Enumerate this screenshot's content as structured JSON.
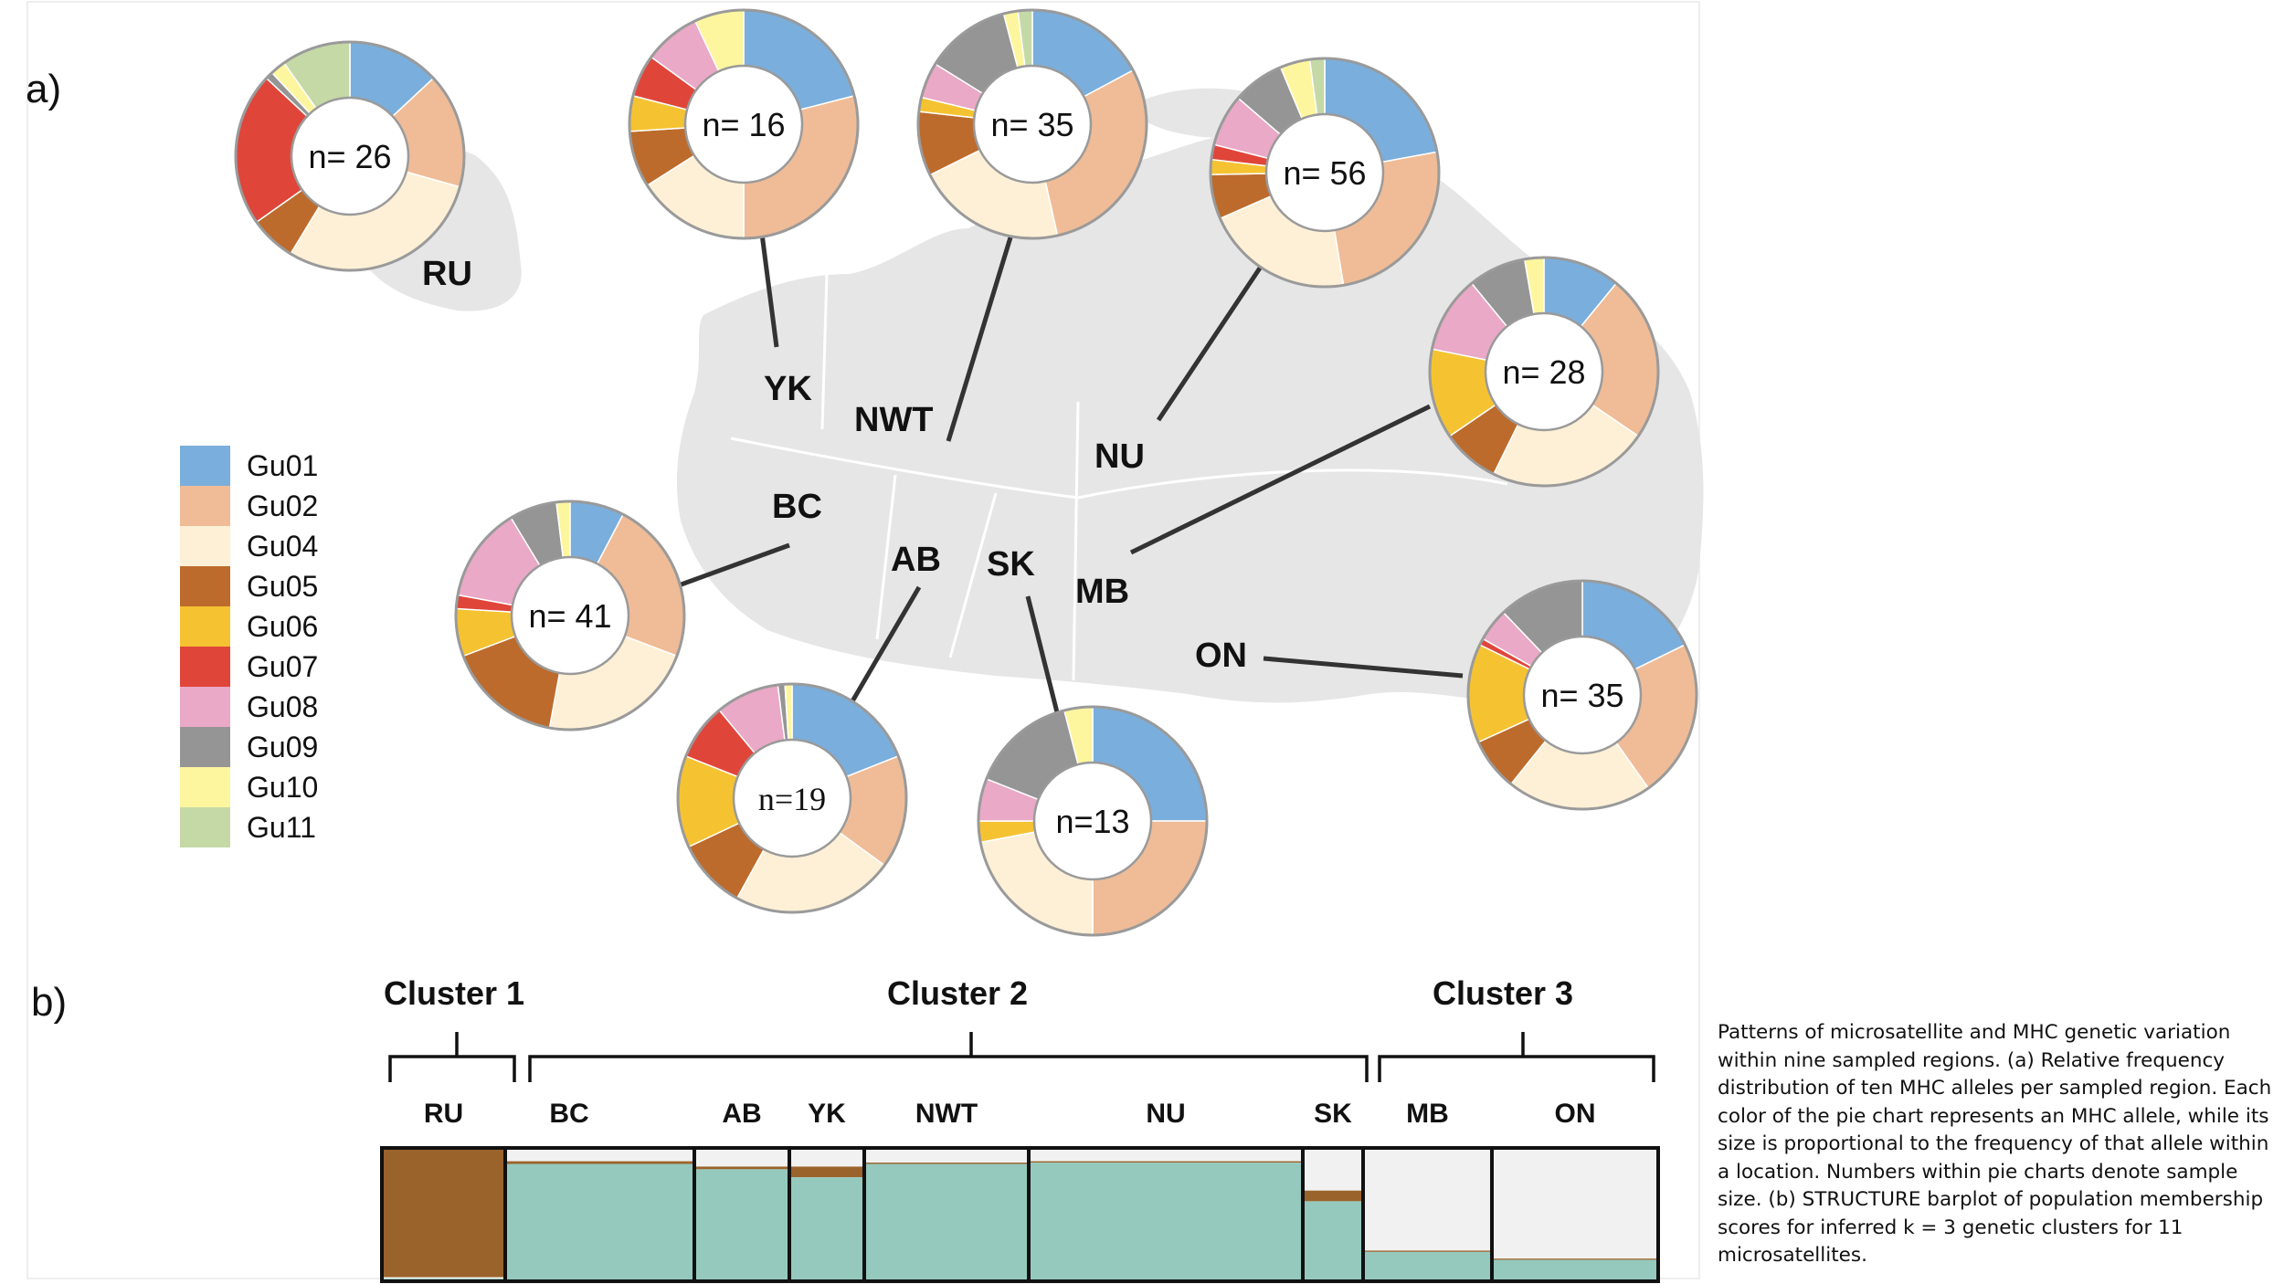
{
  "panel_labels": {
    "a": "a)",
    "b": "b)"
  },
  "colors": {
    "Gu01": "#7aaedc",
    "Gu02": "#efbc97",
    "Gu04": "#fdf0d6",
    "Gu05": "#bd6b2c",
    "Gu06": "#f5c332",
    "Gu07": "#e0453a",
    "Gu08": "#eaa9c6",
    "Gu09": "#959595",
    "Gu10": "#fdf69e",
    "Gu11": "#c5d9a7",
    "map": "#e6e6e6",
    "cluster1": "#9b632c",
    "cluster2": "#95c9bd",
    "cluster3": "#f1f1f1"
  },
  "legend": [
    "Gu01",
    "Gu02",
    "Gu04",
    "Gu05",
    "Gu06",
    "Gu07",
    "Gu08",
    "Gu09",
    "Gu10",
    "Gu11"
  ],
  "region_labels": [
    "RU",
    "YK",
    "NWT",
    "NU",
    "BC",
    "AB",
    "SK",
    "MB",
    "ON"
  ],
  "chart_data": [
    {
      "type": "pie",
      "title": "",
      "note": "donut charts, relative frequency of MHC alleles per region",
      "series": [
        "Gu01",
        "Gu02",
        "Gu04",
        "Gu05",
        "Gu06",
        "Gu07",
        "Gu08",
        "Gu09",
        "Gu10",
        "Gu11"
      ],
      "pies": [
        {
          "region": "RU",
          "n_label": "n= 26",
          "values": [
            0.12,
            0.15,
            0.27,
            0.06,
            0,
            0.2,
            0,
            0.01,
            0.02,
            0.09
          ]
        },
        {
          "region": "YK",
          "n_label": "n= 16",
          "values": [
            0.21,
            0.29,
            0.16,
            0.08,
            0.05,
            0.06,
            0.08,
            0,
            0.07,
            0
          ]
        },
        {
          "region": "NWT",
          "n_label": "n= 35",
          "values": [
            0.17,
            0.29,
            0.21,
            0.09,
            0.02,
            0,
            0.05,
            0.12,
            0.02,
            0.02
          ]
        },
        {
          "region": "NU",
          "n_label": "n= 56",
          "values": [
            0.21,
            0.24,
            0.2,
            0.06,
            0.02,
            0.02,
            0.07,
            0.07,
            0.04,
            0.02
          ]
        },
        {
          "region": "MB",
          "n_label": "n= 28",
          "values": [
            0.12,
            0.26,
            0.25,
            0.09,
            0.14,
            0,
            0.12,
            0.09,
            0.03,
            0
          ]
        },
        {
          "region": "BC",
          "n_label": "n= 41",
          "values": [
            0.08,
            0.24,
            0.23,
            0.17,
            0.07,
            0.02,
            0.14,
            0.07,
            0.02,
            0
          ]
        },
        {
          "region": "AB",
          "n_label": "n=19",
          "values": [
            0.19,
            0.16,
            0.23,
            0.1,
            0.13,
            0.08,
            0.09,
            0.01,
            0.01,
            0
          ]
        },
        {
          "region": "SK",
          "n_label": "n=13",
          "values": [
            0.25,
            0.25,
            0.22,
            0,
            0.03,
            0,
            0.06,
            0.15,
            0.04,
            0
          ]
        },
        {
          "region": "ON",
          "n_label": "n= 35",
          "values": [
            0.19,
            0.24,
            0.22,
            0.08,
            0.15,
            0.01,
            0.05,
            0.13,
            0,
            0
          ]
        }
      ]
    },
    {
      "type": "bar",
      "title": "",
      "stacked": true,
      "note": "STRUCTURE barplot, membership proportions (k = 3)",
      "categories": [
        "RU",
        "BC",
        "AB",
        "YK",
        "NWT",
        "NU",
        "SK",
        "MB",
        "ON"
      ],
      "series": [
        {
          "name": "Cluster 1",
          "values": [
            0.97,
            0.02,
            0.02,
            0.08,
            0.01,
            0.01,
            0.08,
            0.01,
            0.01
          ]
        },
        {
          "name": "Cluster 2",
          "values": [
            0.02,
            0.88,
            0.84,
            0.78,
            0.88,
            0.89,
            0.6,
            0.22,
            0.16
          ]
        },
        {
          "name": "Cluster 3",
          "values": [
            0.01,
            0.1,
            0.14,
            0.14,
            0.11,
            0.1,
            0.32,
            0.77,
            0.83
          ]
        }
      ],
      "ylim": [
        0,
        1
      ]
    }
  ],
  "clusters": [
    {
      "label": "Cluster 1",
      "groups": [
        "RU"
      ]
    },
    {
      "label": "Cluster 2",
      "groups": [
        "BC",
        "AB",
        "YK",
        "NWT",
        "NU",
        "SK"
      ]
    },
    {
      "label": "Cluster 3",
      "groups": [
        "MB",
        "ON"
      ]
    }
  ],
  "caption": "Patterns of microsatellite and MHC genetic variation within nine sampled regions. (a) Relative frequency distribution of ten MHC alleles per sampled region. Each color of the pie chart represents an MHC allele, while its size is proportional to the frequency of that allele within a location. Numbers within pie charts denote sample size. (b) STRUCTURE barplot of population membership scores for inferred k = 3 genetic clusters for 11 microsatellites."
}
